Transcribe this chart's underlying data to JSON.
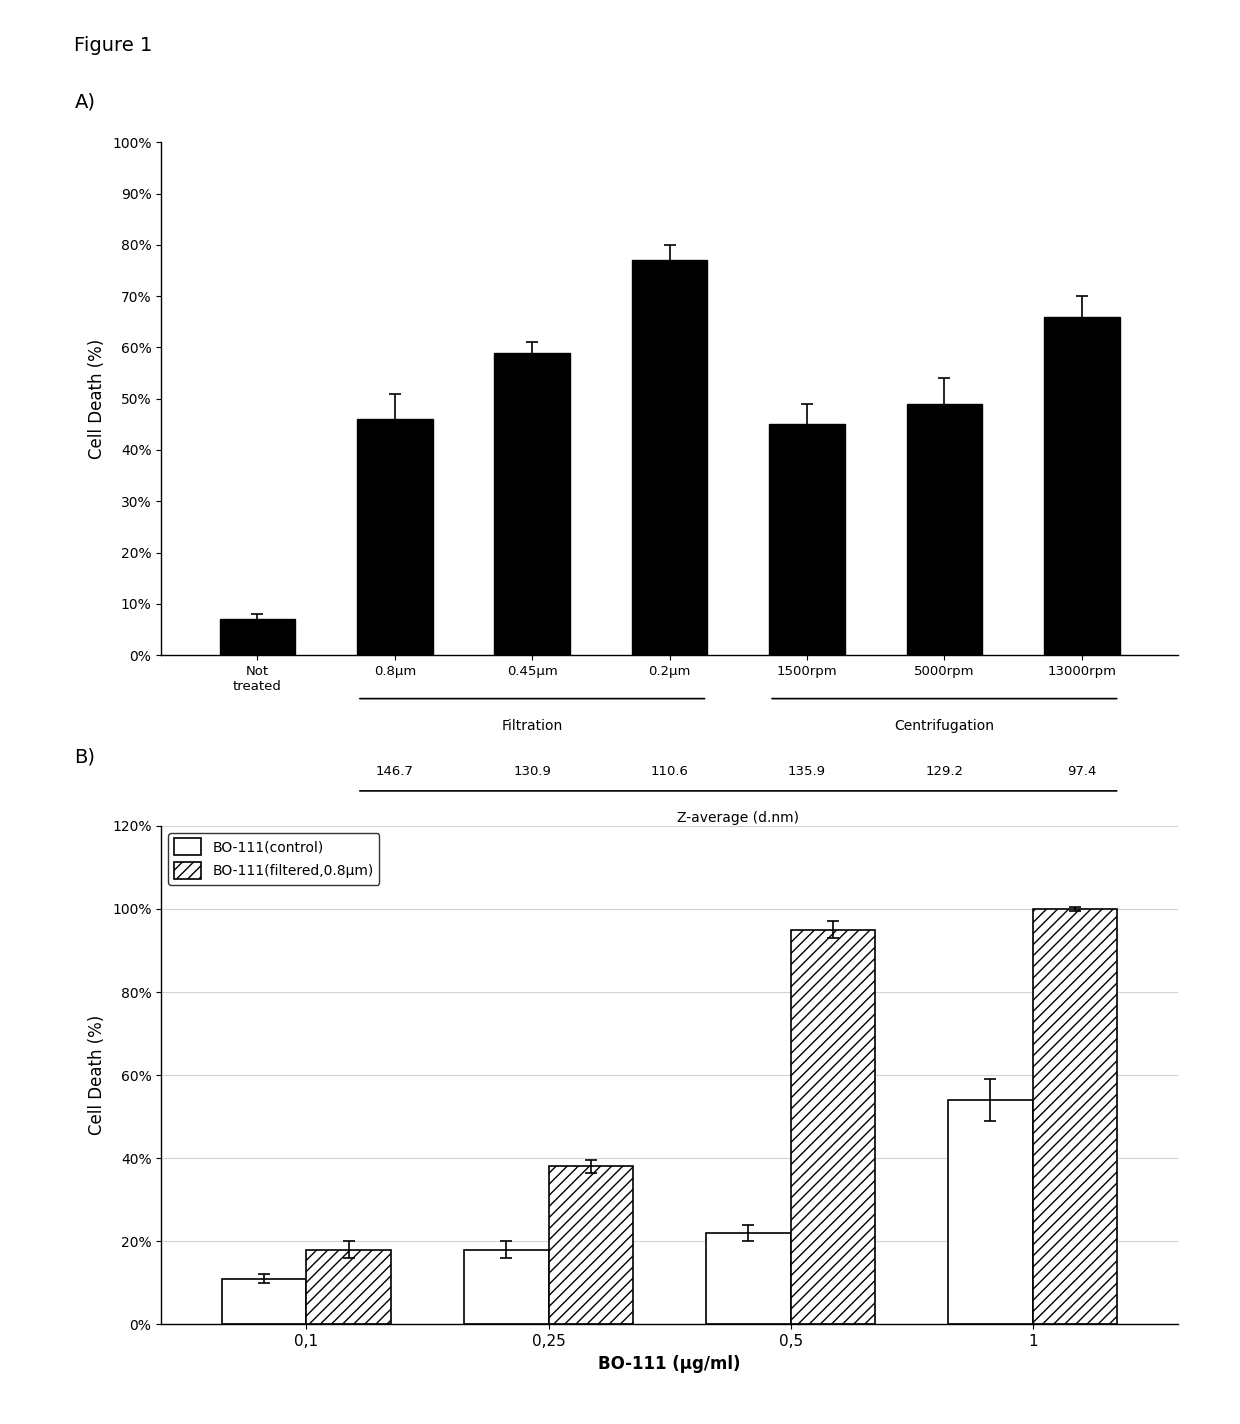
{
  "fig_title": "Figure 1",
  "panel_A": {
    "ylabel": "Cell Death (%)",
    "categories": [
      "Not\ntreated",
      "0.8μm",
      "0.45μm",
      "0.2μm",
      "1500rpm",
      "5000rpm",
      "13000rpm"
    ],
    "values": [
      0.07,
      0.46,
      0.59,
      0.77,
      0.45,
      0.49,
      0.66
    ],
    "errors": [
      0.01,
      0.05,
      0.02,
      0.03,
      0.04,
      0.05,
      0.04
    ],
    "bar_color": "#000000",
    "ylim": [
      0,
      1.0
    ],
    "yticks": [
      0,
      0.1,
      0.2,
      0.3,
      0.4,
      0.5,
      0.6,
      0.7,
      0.8,
      0.9,
      1.0
    ],
    "ytick_labels": [
      "0%",
      "10%",
      "20%",
      "30%",
      "40%",
      "50%",
      "60%",
      "70%",
      "80%",
      "90%",
      "100%"
    ],
    "filtration_label": "Filtration",
    "centrifugation_label": "Centrifugation",
    "z_average_values": [
      "146.7",
      "130.9",
      "110.6",
      "135.9",
      "129.2",
      "97.4"
    ],
    "z_average_label": "Z-average (d.nm)"
  },
  "panel_B": {
    "ylabel": "Cell Death (%)",
    "xlabel": "BO-111 (μg/ml)",
    "categories": [
      "0,1",
      "0,25",
      "0,5",
      "1"
    ],
    "control_values": [
      0.11,
      0.18,
      0.22,
      0.54
    ],
    "control_errors": [
      0.01,
      0.02,
      0.02,
      0.05
    ],
    "filtered_values": [
      0.18,
      0.38,
      0.95,
      1.0
    ],
    "filtered_errors": [
      0.02,
      0.015,
      0.02,
      0.005
    ],
    "ylim": [
      0,
      1.2
    ],
    "yticks": [
      0,
      0.2,
      0.4,
      0.6,
      0.8,
      1.0,
      1.2
    ],
    "ytick_labels": [
      "0%",
      "20%",
      "40%",
      "60%",
      "80%",
      "100%",
      "120%"
    ],
    "legend_control": "BO-111(control)",
    "legend_filtered": "BO-111(filtered,0.8μm)"
  }
}
